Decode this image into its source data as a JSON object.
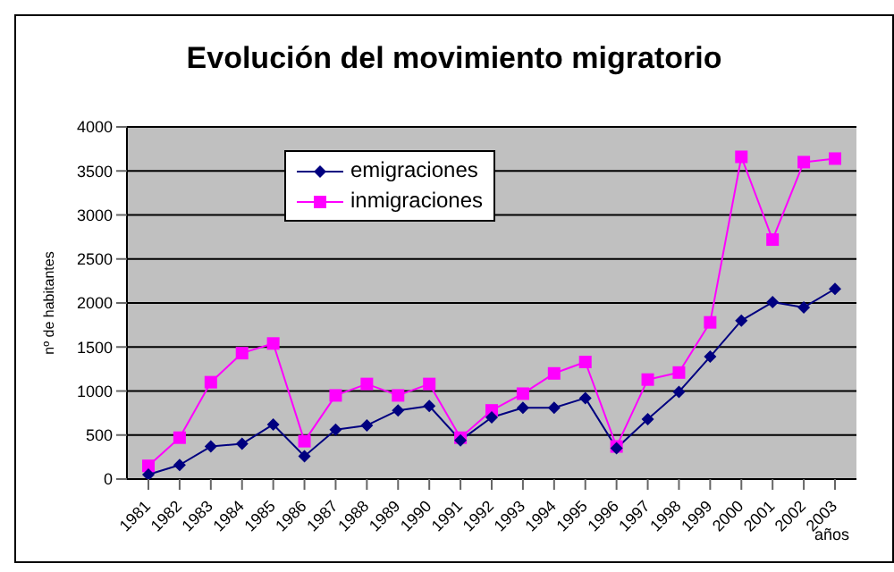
{
  "chart_data": {
    "type": "line",
    "title": "Evolución del movimiento migratorio",
    "xlabel": "años",
    "ylabel": "nº de habitantes",
    "categories": [
      "1981",
      "1982",
      "1983",
      "1984",
      "1985",
      "1986",
      "1987",
      "1988",
      "1989",
      "1990",
      "1991",
      "1992",
      "1993",
      "1994",
      "1995",
      "1996",
      "1997",
      "1998",
      "1999",
      "2000",
      "2001",
      "2002",
      "2003"
    ],
    "series": [
      {
        "name": "emigraciones",
        "color": "#000080",
        "marker": "diamond",
        "values": [
          50,
          160,
          370,
          400,
          620,
          260,
          560,
          610,
          780,
          830,
          440,
          700,
          810,
          810,
          920,
          350,
          680,
          990,
          1390,
          1800,
          2010,
          1950,
          2160
        ]
      },
      {
        "name": "inmigraciones",
        "color": "#ff00ff",
        "marker": "square",
        "values": [
          150,
          470,
          1100,
          1430,
          1540,
          430,
          950,
          1080,
          950,
          1080,
          470,
          780,
          970,
          1200,
          1330,
          370,
          1130,
          1210,
          1780,
          3660,
          2720,
          3600,
          3640
        ]
      }
    ],
    "ylim": [
      0,
      4000
    ],
    "yticks": [
      0,
      500,
      1000,
      1500,
      2000,
      2500,
      3000,
      3500,
      4000
    ],
    "grid": "y",
    "legend": "top left"
  }
}
